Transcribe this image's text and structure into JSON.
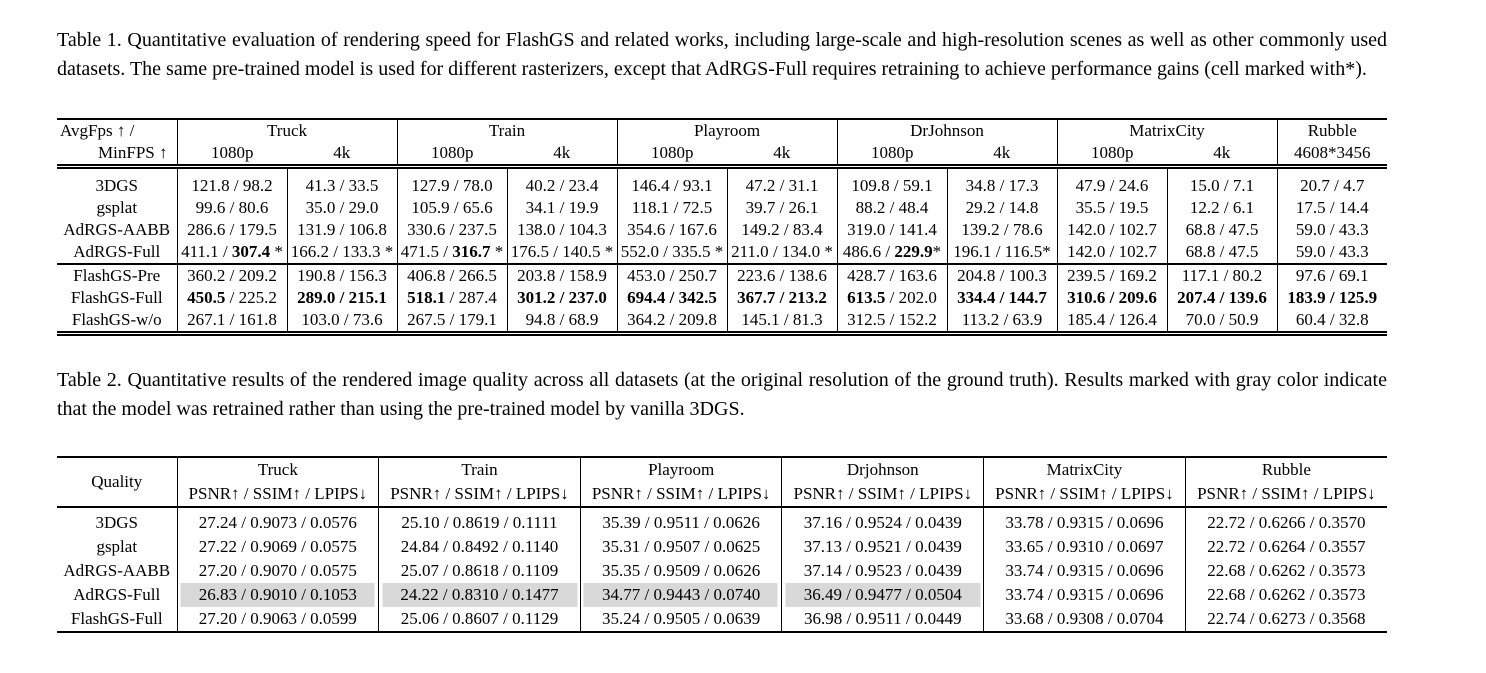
{
  "page": {
    "background": "#ffffff",
    "text_color": "#000000",
    "highlight_color": "#d8d8d8"
  },
  "table1": {
    "caption": "Table 1. Quantitative evaluation of rendering speed for FlashGS and related works, including large-scale and high-resolution scenes as well as other commonly used datasets. The same pre-trained model is used for different rasterizers, except that AdRGS-Full requires retraining to achieve performance gains (cell marked with*).",
    "header": {
      "metric_line1": "AvgFps ↑ /",
      "metric_line2": "MinFPS ↑",
      "groups": [
        {
          "name": "Truck",
          "subs": [
            "1080p",
            "4k"
          ]
        },
        {
          "name": "Train",
          "subs": [
            "1080p",
            "4k"
          ]
        },
        {
          "name": "Playroom",
          "subs": [
            "1080p",
            "4k"
          ]
        },
        {
          "name": "DrJohnson",
          "subs": [
            "1080p",
            "4k"
          ]
        },
        {
          "name": "MatrixCity",
          "subs": [
            "1080p",
            "4k"
          ]
        },
        {
          "name": "Rubble",
          "subs": [
            "4608*3456"
          ]
        }
      ]
    },
    "row_groups": [
      {
        "rows": [
          {
            "label": "3DGS",
            "cells": [
              [
                "121.8",
                "98.2",
                "",
                ""
              ],
              [
                "41.3",
                "33.5",
                "",
                ""
              ],
              [
                "127.9",
                "78.0",
                "",
                ""
              ],
              [
                "40.2",
                "23.4",
                "",
                ""
              ],
              [
                "146.4",
                "93.1",
                "",
                ""
              ],
              [
                "47.2",
                "31.1",
                "",
                ""
              ],
              [
                "109.8",
                "59.1",
                "",
                ""
              ],
              [
                "34.8",
                "17.3",
                "",
                ""
              ],
              [
                "47.9",
                "24.6",
                "",
                ""
              ],
              [
                "15.0",
                "7.1",
                "",
                ""
              ],
              [
                "20.7",
                "4.7",
                "",
                ""
              ]
            ]
          },
          {
            "label": "gsplat",
            "cells": [
              [
                "99.6",
                "80.6",
                "",
                ""
              ],
              [
                "35.0",
                "29.0",
                "",
                ""
              ],
              [
                "105.9",
                "65.6",
                "",
                ""
              ],
              [
                "34.1",
                "19.9",
                "",
                ""
              ],
              [
                "118.1",
                "72.5",
                "",
                ""
              ],
              [
                "39.7",
                "26.1",
                "",
                ""
              ],
              [
                "88.2",
                "48.4",
                "",
                ""
              ],
              [
                "29.2",
                "14.8",
                "",
                ""
              ],
              [
                "35.5",
                "19.5",
                "",
                ""
              ],
              [
                "12.2",
                "6.1",
                "",
                ""
              ],
              [
                "17.5",
                "14.4",
                "",
                ""
              ]
            ]
          },
          {
            "label": "AdRGS-AABB",
            "cells": [
              [
                "286.6",
                "179.5",
                "",
                ""
              ],
              [
                "131.9",
                "106.8",
                "",
                ""
              ],
              [
                "330.6",
                "237.5",
                "",
                ""
              ],
              [
                "138.0",
                "104.3",
                "",
                ""
              ],
              [
                "354.6",
                "167.6",
                "",
                ""
              ],
              [
                "149.2",
                "83.4",
                "",
                ""
              ],
              [
                "319.0",
                "141.4",
                "",
                ""
              ],
              [
                "139.2",
                "78.6",
                "",
                ""
              ],
              [
                "142.0",
                "102.7",
                "",
                ""
              ],
              [
                "68.8",
                "47.5",
                "",
                ""
              ],
              [
                "59.0",
                "43.3",
                "",
                ""
              ]
            ]
          },
          {
            "label": "AdRGS-Full",
            "cells": [
              [
                "411.1",
                "307.4",
                "m",
                " *"
              ],
              [
                "166.2",
                "133.3",
                "",
                " *"
              ],
              [
                "471.5",
                "316.7",
                "m",
                " *"
              ],
              [
                "176.5",
                "140.5",
                "",
                " *"
              ],
              [
                "552.0",
                "335.5",
                "",
                " *"
              ],
              [
                "211.0",
                "134.0",
                "",
                " *"
              ],
              [
                "486.6",
                "229.9",
                "m",
                "*"
              ],
              [
                "196.1",
                "116.5",
                "",
                "*"
              ],
              [
                "142.0",
                "102.7",
                "",
                ""
              ],
              [
                "68.8",
                "47.5",
                "",
                ""
              ],
              [
                "59.0",
                "43.3",
                "",
                ""
              ]
            ]
          }
        ]
      },
      {
        "rows": [
          {
            "label": "FlashGS-Pre",
            "cells": [
              [
                "360.2",
                "209.2",
                "",
                ""
              ],
              [
                "190.8",
                "156.3",
                "",
                ""
              ],
              [
                "406.8",
                "266.5",
                "",
                ""
              ],
              [
                "203.8",
                "158.9",
                "",
                ""
              ],
              [
                "453.0",
                "250.7",
                "",
                ""
              ],
              [
                "223.6",
                "138.6",
                "",
                ""
              ],
              [
                "428.7",
                "163.6",
                "",
                ""
              ],
              [
                "204.8",
                "100.3",
                "",
                ""
              ],
              [
                "239.5",
                "169.2",
                "",
                ""
              ],
              [
                "117.1",
                "80.2",
                "",
                ""
              ],
              [
                "97.6",
                "69.1",
                "",
                ""
              ]
            ]
          },
          {
            "label": "FlashGS-Full",
            "cells": [
              [
                "450.5",
                "225.2",
                "a",
                ""
              ],
              [
                "289.0",
                "215.1",
                "am",
                ""
              ],
              [
                "518.1",
                "287.4",
                "a",
                ""
              ],
              [
                "301.2",
                "237.0",
                "am",
                ""
              ],
              [
                "694.4",
                "342.5",
                "am",
                ""
              ],
              [
                "367.7",
                "213.2",
                "am",
                ""
              ],
              [
                "613.5",
                "202.0",
                "a",
                ""
              ],
              [
                "334.4",
                "144.7",
                "am",
                ""
              ],
              [
                "310.6",
                "209.6",
                "am",
                ""
              ],
              [
                "207.4",
                "139.6",
                "am",
                ""
              ],
              [
                "183.9",
                "125.9",
                "am",
                ""
              ]
            ]
          },
          {
            "label": "FlashGS-w/o",
            "cells": [
              [
                "267.1",
                "161.8",
                "",
                ""
              ],
              [
                "103.0",
                "73.6",
                "",
                ""
              ],
              [
                "267.5",
                "179.1",
                "",
                ""
              ],
              [
                "94.8",
                "68.9",
                "",
                ""
              ],
              [
                "364.2",
                "209.8",
                "",
                ""
              ],
              [
                "145.1",
                "81.3",
                "",
                ""
              ],
              [
                "312.5",
                "152.2",
                "",
                ""
              ],
              [
                "113.2",
                "63.9",
                "",
                ""
              ],
              [
                "185.4",
                "126.4",
                "",
                ""
              ],
              [
                "70.0",
                "50.9",
                "",
                ""
              ],
              [
                "60.4",
                "32.8",
                "",
                ""
              ]
            ]
          }
        ]
      }
    ]
  },
  "table2": {
    "caption": "Table 2. Quantitative results of the rendered image quality across all datasets (at the original resolution of the ground truth). Results marked with gray color indicate that the model was retrained rather than using the pre-trained model by vanilla 3DGS.",
    "header": {
      "label": "Quality",
      "metrics": "PSNR↑ / SSIM↑ / LPIPS↓",
      "groups": [
        "Truck",
        "Train",
        "Playroom",
        "Drjohnson",
        "MatrixCity",
        "Rubble"
      ]
    },
    "rows": [
      {
        "label": "3DGS",
        "gray": [],
        "cells": [
          "27.24 / 0.9073 / 0.0576",
          "25.10 / 0.8619 / 0.1111",
          "35.39 / 0.9511 / 0.0626",
          "37.16 / 0.9524 / 0.0439",
          "33.78 / 0.9315 / 0.0696",
          "22.72 / 0.6266 / 0.3570"
        ]
      },
      {
        "label": "gsplat",
        "gray": [],
        "cells": [
          "27.22 / 0.9069 / 0.0575",
          "24.84 / 0.8492 / 0.1140",
          "35.31 / 0.9507 / 0.0625",
          "37.13 / 0.9521 / 0.0439",
          "33.65 / 0.9310 / 0.0697",
          "22.72 / 0.6264 / 0.3557"
        ]
      },
      {
        "label": "AdRGS-AABB",
        "gray": [],
        "cells": [
          "27.20 / 0.9070 / 0.0575",
          "25.07 / 0.8618 / 0.1109",
          "35.35 / 0.9509 / 0.0626",
          "37.14 / 0.9523 / 0.0439",
          "33.74 / 0.9315 / 0.0696",
          "22.68 / 0.6262 / 0.3573"
        ]
      },
      {
        "label": "AdRGS-Full",
        "gray": [
          0,
          1,
          2,
          3
        ],
        "cells": [
          "26.83 / 0.9010 / 0.1053",
          "24.22 / 0.8310 / 0.1477",
          "34.77 / 0.9443 / 0.0740",
          "36.49 / 0.9477 / 0.0504",
          "33.74 / 0.9315 / 0.0696",
          "22.68 / 0.6262 / 0.3573"
        ]
      },
      {
        "label": "FlashGS-Full",
        "gray": [],
        "cells": [
          "27.20 / 0.9063 / 0.0599",
          "25.06 / 0.8607 / 0.1129",
          "35.24 / 0.9505 / 0.0639",
          "36.98 / 0.9511 / 0.0449",
          "33.68 / 0.9308 / 0.0704",
          "22.74 / 0.6273 / 0.3568"
        ]
      }
    ]
  }
}
